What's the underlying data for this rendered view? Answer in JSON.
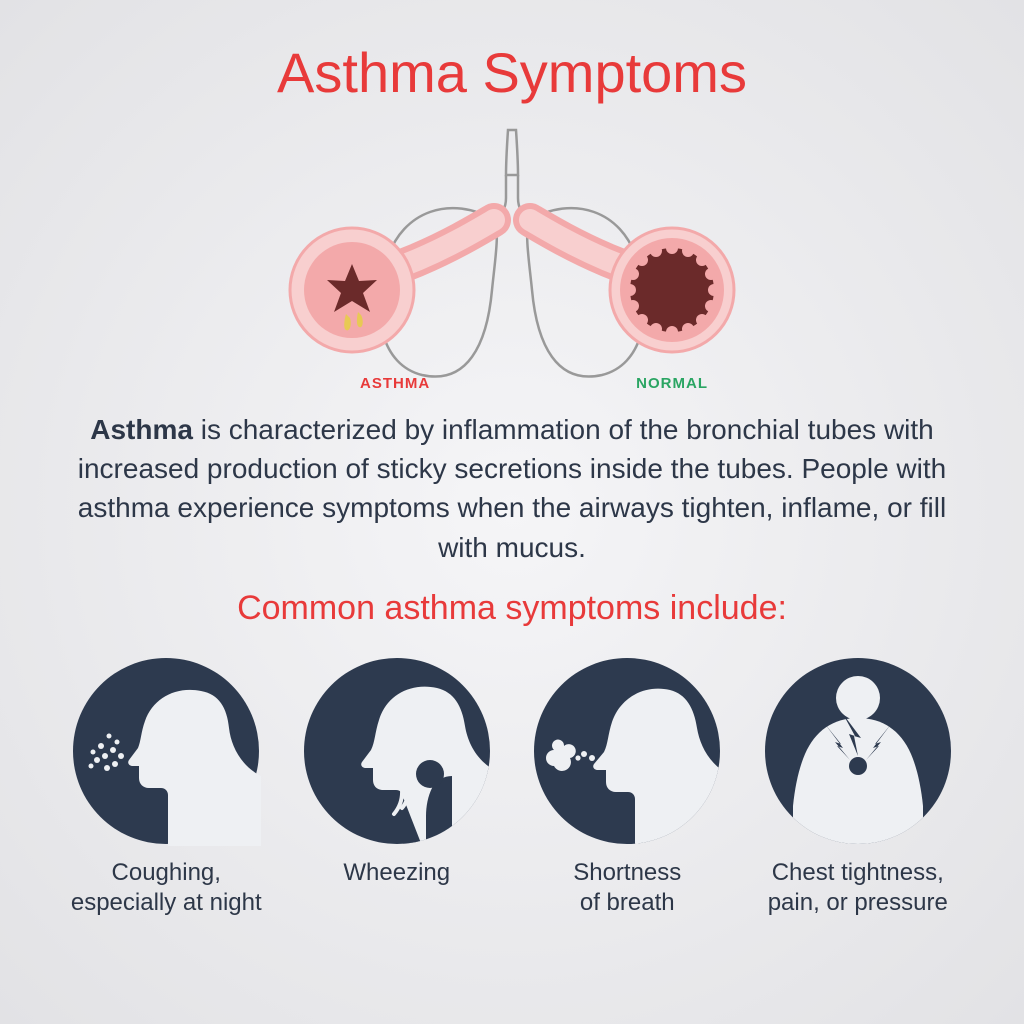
{
  "colors": {
    "title_red": "#e83a3a",
    "text_dark": "#2d3748",
    "icon_navy": "#2d3a4f",
    "asthma_red": "#e83a3a",
    "normal_green": "#2aa563",
    "airway_pink": "#f3a9aa",
    "airway_pink_light": "#f8cfcf",
    "airway_dark": "#6b2a2a",
    "mucus_yellow": "#e8c954",
    "lung_outline": "#888888"
  },
  "title": "Asthma Symptoms",
  "diagram": {
    "asthma_label": "ASTHMA",
    "normal_label": "NORMAL"
  },
  "description_bold": "Asthma",
  "description_rest": " is characterized by inflammation of the bronchial tubes with increased production of sticky secretions inside the tubes. People with asthma experience symptoms when the airways tighten, inflame, or fill with mucus.",
  "subtitle": "Common asthma symptoms include:",
  "symptoms": [
    {
      "label": "Coughing,\nespecially at night"
    },
    {
      "label": "Wheezing"
    },
    {
      "label": "Shortness\nof breath"
    },
    {
      "label": "Chest tightness,\npain, or pressure"
    }
  ],
  "typography": {
    "title_fontsize": 56,
    "description_fontsize": 28,
    "subtitle_fontsize": 34,
    "symptom_label_fontsize": 24,
    "diagram_label_fontsize": 15
  }
}
